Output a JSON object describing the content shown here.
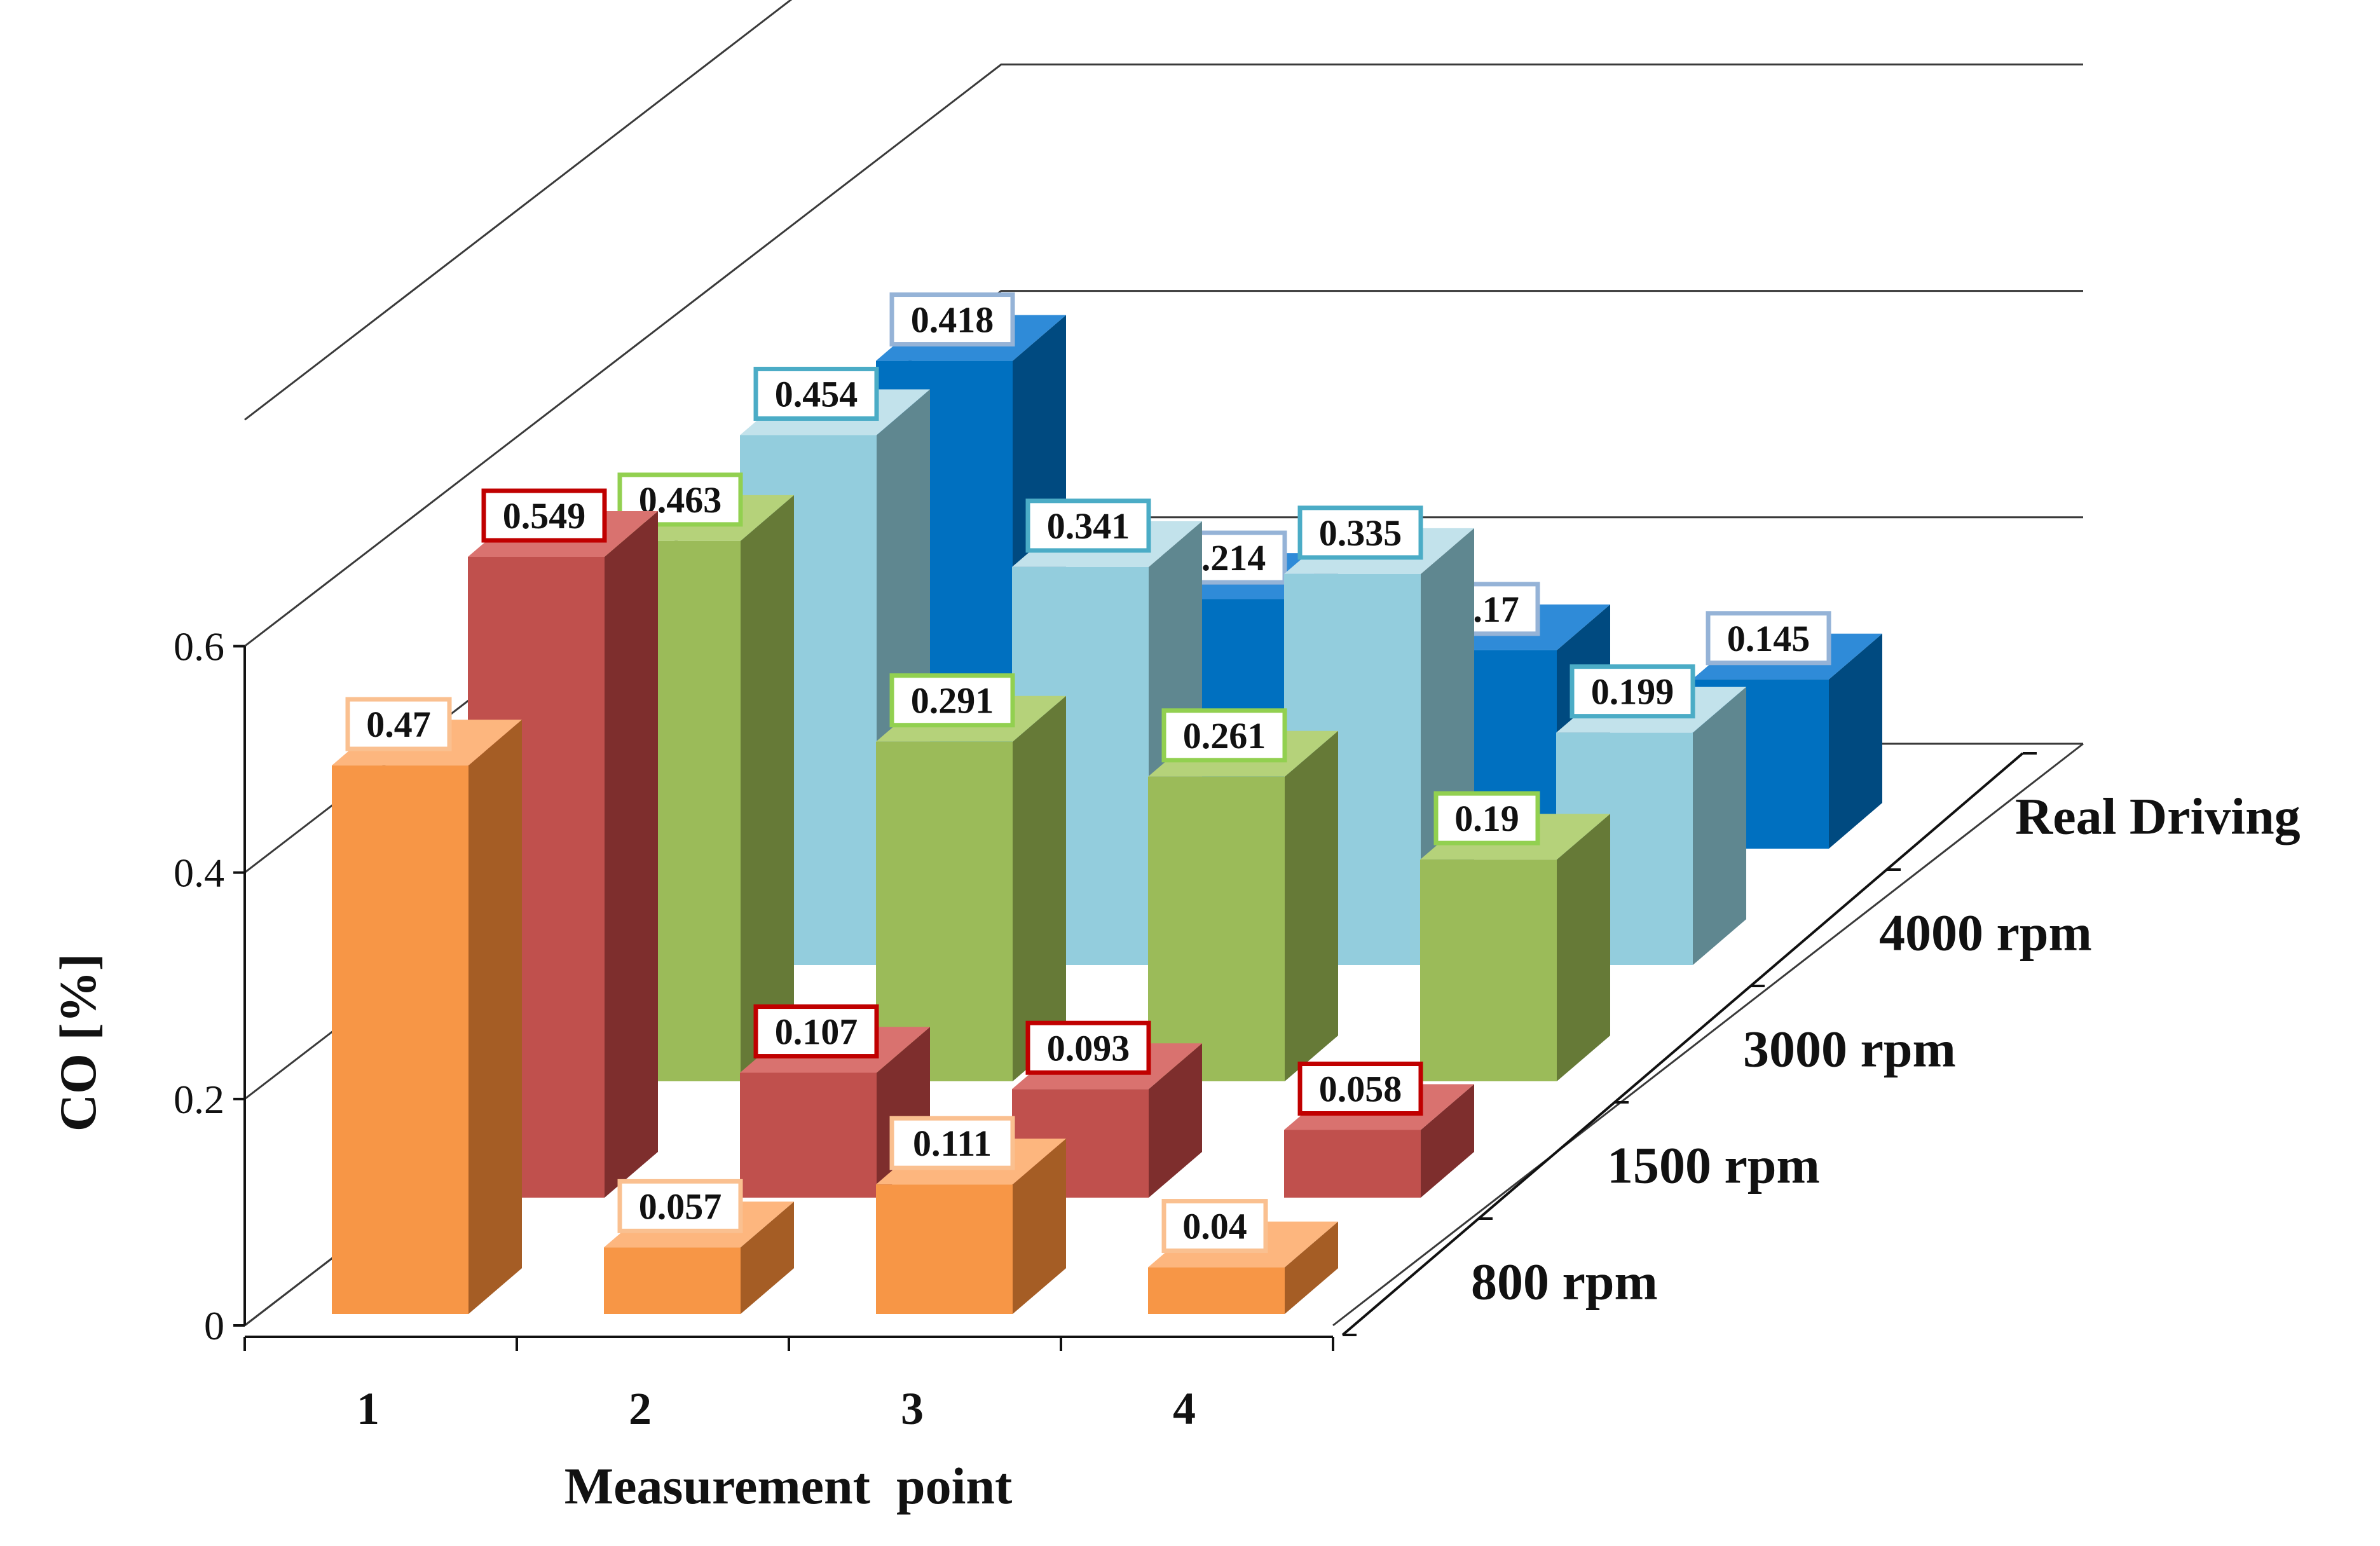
{
  "chart_data": {
    "type": "bar",
    "subtype": "3d-clustered-depth",
    "title": "",
    "xlabel": "Measurement  point",
    "ylabel": "CO [%]",
    "categories": [
      "1",
      "2",
      "3",
      "4"
    ],
    "y_ticks": [
      "0",
      "0.2",
      "0.4",
      "0.6"
    ],
    "ylim": [
      0,
      0.6
    ],
    "series": [
      {
        "name": "800 rpm",
        "values": [
          0.47,
          0.057,
          0.111,
          0.04
        ],
        "labels": [
          "0.47",
          "0.057",
          "0.111",
          "0.04"
        ],
        "front": "#F79646",
        "side": "#A55D25",
        "top": "#FDB67E",
        "label_border": "#FAC090"
      },
      {
        "name": "1500 rpm",
        "values": [
          0.549,
          0.107,
          0.093,
          0.058
        ],
        "labels": [
          "0.549",
          "0.107",
          "0.093",
          "0.058"
        ],
        "front": "#C0504D",
        "side": "#7E2E2D",
        "top": "#D9726F",
        "label_border": "#C00000"
      },
      {
        "name": "3000 rpm",
        "values": [
          0.463,
          0.291,
          0.261,
          0.19
        ],
        "labels": [
          "0.463",
          "0.291",
          "0.261",
          "0.19"
        ],
        "front": "#9BBB59",
        "side": "#667A37",
        "top": "#B5D27A",
        "label_border": "#92D050"
      },
      {
        "name": "4000 rpm",
        "values": [
          0.454,
          0.341,
          0.335,
          0.199
        ],
        "labels": [
          "0.454",
          "0.341",
          "0.335",
          "0.199"
        ],
        "front": "#93CDDD",
        "side": "#5F8790",
        "top": "#C2E2EB",
        "label_border": "#4BACC6"
      },
      {
        "name": "Real Driving",
        "values": [
          0.418,
          0.214,
          0.17,
          0.145
        ],
        "labels": [
          "0.418",
          "0.214",
          "0.17",
          "0.145"
        ],
        "front": "#0070C0",
        "side": "#004A80",
        "top": "#2F8BD8",
        "label_border": "#95B3D7"
      }
    ]
  }
}
